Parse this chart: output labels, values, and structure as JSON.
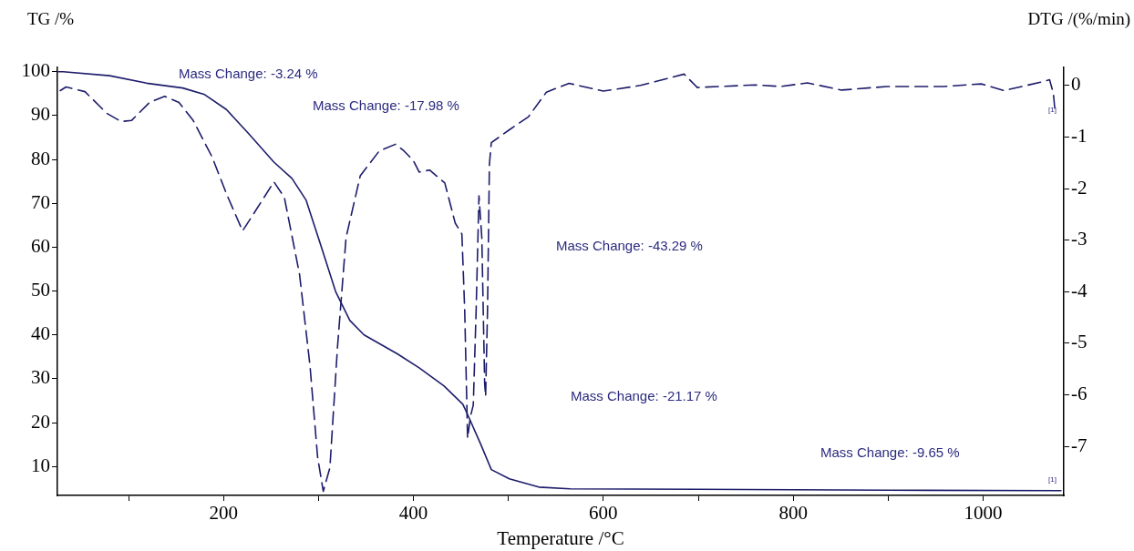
{
  "chart_data": {
    "type": "line",
    "xlabel": "Temperature /°C",
    "ylabel": "TG /%",
    "y2label": "DTG /(%/min)",
    "xlim": [
      25,
      1085
    ],
    "xticks": [
      {
        "value": 100,
        "label": null
      },
      200,
      {
        "value": 300,
        "label": null
      },
      400,
      {
        "value": 500,
        "label": null
      },
      600,
      {
        "value": 700,
        "label": null
      },
      800,
      {
        "value": 900,
        "label": null
      },
      1000
    ],
    "ylim": [
      3.4,
      101
    ],
    "yticks": [
      10,
      20,
      30,
      40,
      50,
      60,
      70,
      80,
      90,
      100
    ],
    "y2lim": [
      -7.95,
      0.35
    ],
    "y2ticks": [
      -7,
      -6,
      -5,
      -4,
      -3,
      -2,
      -1,
      0
    ],
    "grid": false,
    "legend": false,
    "marker": "none",
    "series": [
      {
        "color": "#1c1c6b",
        "line_style": "solid",
        "x": [
          26,
          31,
          80,
          119,
          157,
          180,
          203,
          226,
          253,
          272,
          287,
          302,
          318,
          333,
          348,
          383,
          406,
          432,
          452,
          459,
          471,
          482,
          501,
          532,
          565,
          700,
          900,
          1082
        ],
        "values": [
          100,
          100,
          99.1,
          97.4,
          96.3,
          94.8,
          91.4,
          86,
          79.4,
          75.7,
          70.7,
          60.7,
          49.9,
          43.3,
          40,
          35.7,
          32.5,
          28.4,
          24.2,
          20.9,
          15,
          9.3,
          7.2,
          5.3,
          4.9,
          4.8,
          4.6,
          4.5
        ]
      },
      {
        "color": "#1c1c6b",
        "line_style": "dashed",
        "axis": "y2",
        "x": [
          28,
          34,
          54,
          77,
          92,
          103,
          122,
          138,
          153,
          168,
          188,
          203,
          220,
          233,
          253,
          264,
          280,
          291,
          299,
          305,
          312,
          320,
          329,
          344,
          364,
          381,
          390,
          400,
          406,
          417,
          433,
          444,
          451,
          454,
          457,
          460,
          463,
          466,
          469,
          472,
          475,
          476,
          478,
          480,
          482,
          501,
          521,
          540,
          564,
          600,
          639,
          685,
          699,
          759,
          787,
          815,
          851,
          899,
          958,
          998,
          1022,
          1062,
          1070,
          1074,
          1076
        ],
        "values": [
          -0.1,
          -0.03,
          -0.12,
          -0.54,
          -0.7,
          -0.68,
          -0.33,
          -0.21,
          -0.33,
          -0.68,
          -1.39,
          -2.1,
          -2.82,
          -2.45,
          -1.87,
          -2.17,
          -3.66,
          -5.43,
          -7.2,
          -7.87,
          -7.41,
          -5.07,
          -2.95,
          -1.75,
          -1.27,
          -1.14,
          -1.27,
          -1.46,
          -1.68,
          -1.64,
          -1.89,
          -2.67,
          -2.88,
          -4.37,
          -6.84,
          -6.42,
          -6.2,
          -4.37,
          -2.14,
          -2.95,
          -5.78,
          -6.03,
          -4.37,
          -1.53,
          -1.11,
          -0.86,
          -0.61,
          -0.13,
          0.04,
          -0.11,
          0,
          0.22,
          -0.04,
          0.01,
          -0.02,
          0.05,
          -0.09,
          -0.02,
          -0.02,
          0.03,
          -0.1,
          0.07,
          0.11,
          -0.15,
          -0.55
        ]
      }
    ],
    "annotations": [
      "Mass Change: -3.24 %",
      "Mass Change: -17.98 %",
      "Mass Change: -43.29 %",
      "Mass Change: -21.17 %",
      "Mass Change: -9.65 %",
      "[1]",
      "[1]"
    ]
  }
}
